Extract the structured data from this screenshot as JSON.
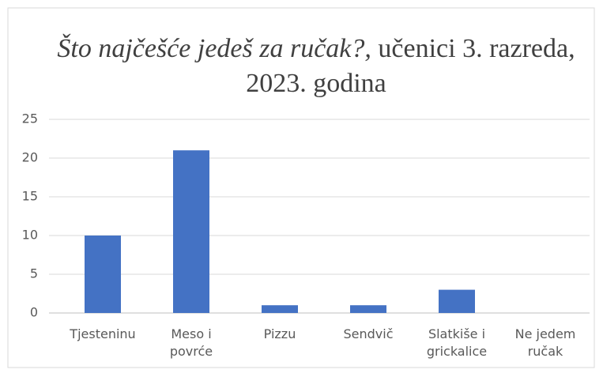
{
  "chart_data": {
    "type": "bar",
    "title": [
      "Što najčešće jedeš za ručak?,",
      "učenici 3. razreda, 2023. godina"
    ],
    "categories": [
      "Tjesteninu",
      "Meso i povrće",
      "Pizzu",
      "Sendvič",
      "Slatkiše i grickalice",
      "Ne jedem ručak"
    ],
    "values": [
      10,
      21,
      1,
      1,
      3,
      0
    ],
    "color": "#4472c4",
    "ylim": [
      0,
      25
    ],
    "yticks": [
      0,
      5,
      10,
      15,
      20,
      25
    ],
    "grid": true
  }
}
